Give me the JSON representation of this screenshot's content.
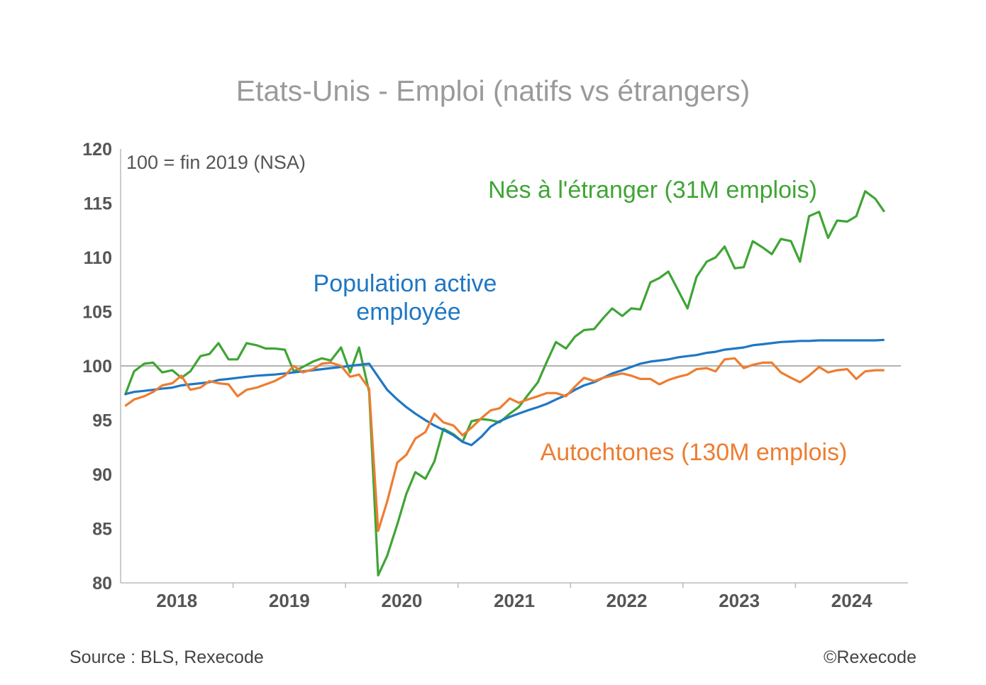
{
  "colors": {
    "native": "#ED7D31",
    "foreign": "#3FA535",
    "total": "#1F77C4",
    "axis": "#bbbbbb",
    "text": "#555555"
  },
  "footer": {
    "source": "Source : BLS, Rexecode",
    "copyright": "©Rexecode"
  },
  "chart_data": {
    "type": "line",
    "title": "Etats-Unis - Emploi (natifs vs étrangers)",
    "note": "100 = fin 2019 (NSA)",
    "ylim": [
      80,
      120
    ],
    "yticks": [
      "120",
      "115",
      "110",
      "105",
      "100",
      "95",
      "90",
      "85",
      "80"
    ],
    "xlim": [
      2017.5,
      2024.5
    ],
    "xticks": [
      {
        "label": "2018",
        "x": 2018.0
      },
      {
        "label": "2019",
        "x": 2019.0
      },
      {
        "label": "2020",
        "x": 2020.0
      },
      {
        "label": "2021",
        "x": 2021.0
      },
      {
        "label": "2022",
        "x": 2022.0
      },
      {
        "label": "2023",
        "x": 2023.0
      },
      {
        "label": "2024",
        "x": 2024.0
      }
    ],
    "reference_line": 100,
    "series": [
      {
        "key": "foreign",
        "name": "Nés à l'étranger (31M emplois)",
        "x": [
          2017.54,
          2017.62,
          2017.71,
          2017.79,
          2017.87,
          2017.96,
          2018.04,
          2018.12,
          2018.21,
          2018.29,
          2018.37,
          2018.46,
          2018.54,
          2018.62,
          2018.71,
          2018.79,
          2018.87,
          2018.96,
          2019.04,
          2019.12,
          2019.21,
          2019.29,
          2019.37,
          2019.46,
          2019.54,
          2019.62,
          2019.71,
          2019.79,
          2019.87,
          2019.96,
          2020.04,
          2020.12,
          2020.21,
          2020.29,
          2020.37,
          2020.46,
          2020.54,
          2020.62,
          2020.71,
          2020.79,
          2020.87,
          2020.96,
          2021.04,
          2021.12,
          2021.21,
          2021.29,
          2021.37,
          2021.46,
          2021.54,
          2021.62,
          2021.71,
          2021.79,
          2021.87,
          2021.96,
          2022.04,
          2022.12,
          2022.21,
          2022.29,
          2022.37,
          2022.46,
          2022.54,
          2022.62,
          2022.71,
          2022.79,
          2022.87,
          2022.96,
          2023.04,
          2023.12,
          2023.21,
          2023.29,
          2023.37,
          2023.46,
          2023.54,
          2023.62,
          2023.71,
          2023.79,
          2023.87,
          2023.96,
          2024.04,
          2024.12,
          2024.21,
          2024.29
        ],
        "values": [
          97.3,
          99.5,
          100.2,
          100.3,
          99.4,
          99.6,
          98.9,
          99.5,
          100.9,
          101.1,
          102.1,
          100.6,
          100.6,
          102.1,
          101.9,
          101.6,
          101.6,
          101.5,
          99.5,
          99.9,
          100.4,
          100.7,
          100.5,
          101.7,
          99.4,
          101.7,
          97.6,
          80.7,
          82.5,
          85.4,
          88.2,
          90.2,
          89.6,
          91.2,
          94.2,
          93.7,
          93.0,
          94.9,
          95.1,
          95.0,
          94.8,
          95.6,
          96.2,
          97.3,
          98.5,
          100.4,
          102.2,
          101.6,
          102.7,
          103.3,
          103.4,
          104.4,
          105.3,
          104.6,
          105.3,
          105.2,
          107.7,
          108.1,
          108.7,
          106.9,
          105.3,
          108.2,
          109.6,
          110.0,
          111.0,
          109.0,
          109.1,
          111.5,
          110.9,
          110.3,
          111.7,
          111.5,
          109.6,
          113.8,
          114.2,
          111.8,
          113.4,
          113.3,
          113.8,
          116.1,
          115.4,
          114.2
        ]
      },
      {
        "key": "total",
        "name": "Population active employée",
        "x": [
          2017.54,
          2017.62,
          2017.71,
          2017.79,
          2017.87,
          2017.96,
          2018.04,
          2018.12,
          2018.21,
          2018.29,
          2018.37,
          2018.46,
          2018.54,
          2018.62,
          2018.71,
          2018.79,
          2018.87,
          2018.96,
          2019.04,
          2019.12,
          2019.21,
          2019.29,
          2019.37,
          2019.46,
          2019.54,
          2019.62,
          2019.71,
          2019.79,
          2019.87,
          2019.96,
          2020.04,
          2020.12,
          2020.21,
          2020.29,
          2020.37,
          2020.46,
          2020.54,
          2020.62,
          2020.71,
          2020.79,
          2020.87,
          2020.96,
          2021.04,
          2021.12,
          2021.21,
          2021.29,
          2021.37,
          2021.46,
          2021.54,
          2021.62,
          2021.71,
          2021.79,
          2021.87,
          2021.96,
          2022.04,
          2022.12,
          2022.21,
          2022.29,
          2022.37,
          2022.46,
          2022.54,
          2022.62,
          2022.71,
          2022.79,
          2022.87,
          2022.96,
          2023.04,
          2023.12,
          2023.21,
          2023.29,
          2023.37,
          2023.46,
          2023.54,
          2023.62,
          2023.71,
          2023.79,
          2023.87,
          2023.96,
          2024.04,
          2024.12,
          2024.21,
          2024.29
        ],
        "values": [
          97.4,
          97.6,
          97.7,
          97.8,
          97.9,
          98.0,
          98.2,
          98.3,
          98.4,
          98.5,
          98.7,
          98.8,
          98.9,
          99.0,
          99.1,
          99.15,
          99.2,
          99.3,
          99.4,
          99.5,
          99.6,
          99.7,
          99.8,
          99.9,
          100.0,
          100.1,
          100.2,
          99.0,
          97.8,
          96.9,
          96.2,
          95.6,
          95.0,
          94.5,
          94.1,
          93.6,
          93.0,
          92.7,
          93.5,
          94.4,
          94.9,
          95.3,
          95.6,
          95.9,
          96.2,
          96.5,
          96.9,
          97.3,
          97.8,
          98.2,
          98.5,
          98.9,
          99.3,
          99.6,
          99.9,
          100.2,
          100.4,
          100.5,
          100.6,
          100.8,
          100.9,
          101.0,
          101.2,
          101.3,
          101.5,
          101.6,
          101.7,
          101.9,
          102.0,
          102.1,
          102.2,
          102.25,
          102.3,
          102.3,
          102.35,
          102.35,
          102.35,
          102.35,
          102.35,
          102.35,
          102.35,
          102.4
        ]
      },
      {
        "key": "native",
        "name": "Autochtones (130M emplois)",
        "x": [
          2017.54,
          2017.62,
          2017.71,
          2017.79,
          2017.87,
          2017.96,
          2018.04,
          2018.12,
          2018.21,
          2018.29,
          2018.37,
          2018.46,
          2018.54,
          2018.62,
          2018.71,
          2018.79,
          2018.87,
          2018.96,
          2019.04,
          2019.12,
          2019.21,
          2019.29,
          2019.37,
          2019.46,
          2019.54,
          2019.62,
          2019.71,
          2019.79,
          2019.87,
          2019.96,
          2020.04,
          2020.12,
          2020.21,
          2020.29,
          2020.37,
          2020.46,
          2020.54,
          2020.62,
          2020.71,
          2020.79,
          2020.87,
          2020.96,
          2021.04,
          2021.12,
          2021.21,
          2021.29,
          2021.37,
          2021.46,
          2021.54,
          2021.62,
          2021.71,
          2021.79,
          2021.87,
          2021.96,
          2022.04,
          2022.12,
          2022.21,
          2022.29,
          2022.37,
          2022.46,
          2022.54,
          2022.62,
          2022.71,
          2022.79,
          2022.87,
          2022.96,
          2023.04,
          2023.12,
          2023.21,
          2023.29,
          2023.37,
          2023.46,
          2023.54,
          2023.62,
          2023.71,
          2023.79,
          2023.87,
          2023.96,
          2024.04,
          2024.12,
          2024.21,
          2024.29
        ],
        "values": [
          96.3,
          96.9,
          97.2,
          97.6,
          98.2,
          98.4,
          99.1,
          97.8,
          98.0,
          98.6,
          98.4,
          98.3,
          97.2,
          97.8,
          98.0,
          98.3,
          98.6,
          99.1,
          100.0,
          99.4,
          99.7,
          100.2,
          100.3,
          100.0,
          99.0,
          99.2,
          97.9,
          84.8,
          87.5,
          91.1,
          91.8,
          93.3,
          93.9,
          95.6,
          94.8,
          94.5,
          93.6,
          94.3,
          95.2,
          95.9,
          96.1,
          97.0,
          96.6,
          96.9,
          97.2,
          97.5,
          97.5,
          97.2,
          98.1,
          98.9,
          98.6,
          98.9,
          99.1,
          99.3,
          99.1,
          98.8,
          98.8,
          98.3,
          98.7,
          99.0,
          99.2,
          99.7,
          99.8,
          99.5,
          100.6,
          100.7,
          99.8,
          100.1,
          100.3,
          100.3,
          99.4,
          98.9,
          98.5,
          99.1,
          99.9,
          99.4,
          99.6,
          99.7,
          98.8,
          99.5,
          99.6,
          99.6
        ]
      }
    ]
  }
}
